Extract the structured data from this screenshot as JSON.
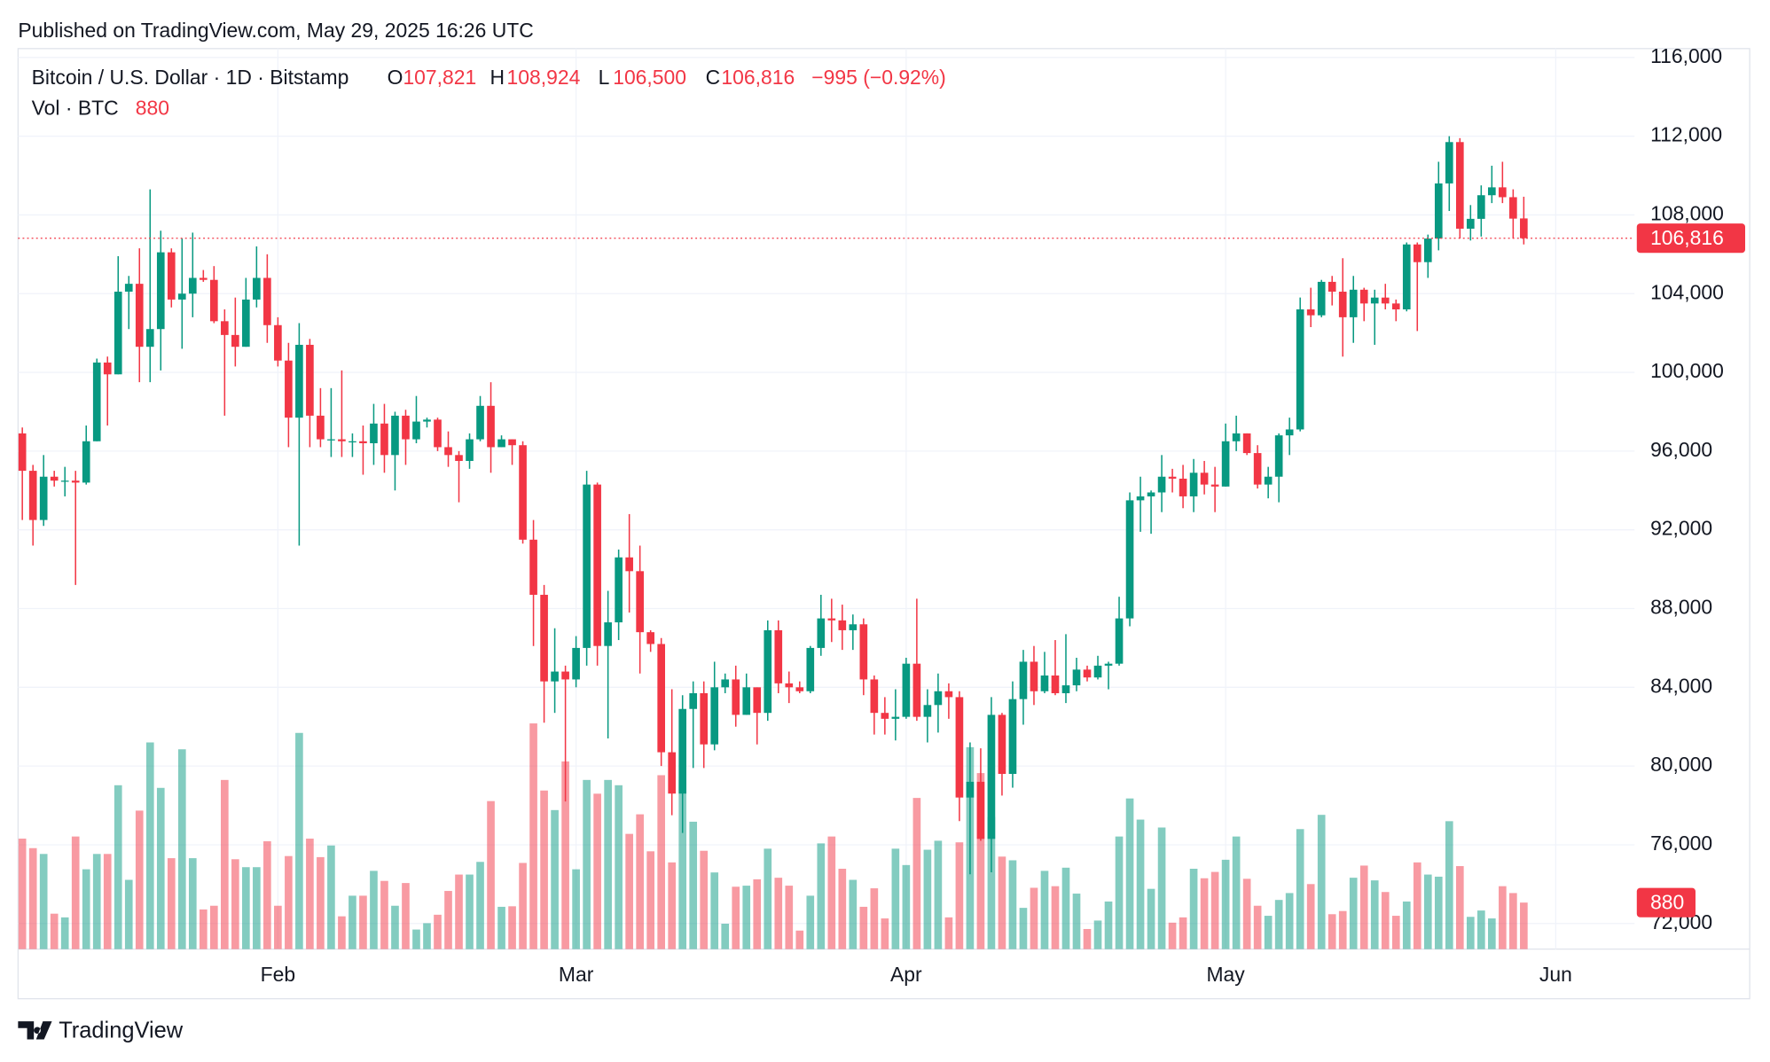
{
  "chart_data": {
    "type": "candlestick",
    "published": "Published on TradingView.com, May 29, 2025 16:26 UTC",
    "title": "Bitcoin / U.S. Dollar · 1D · Bitstamp",
    "brand": "TradingView",
    "legend": {
      "open_label": "O",
      "open": "107,821",
      "high_label": "H",
      "high": "108,924",
      "low_label": "L",
      "low": "106,500",
      "close_label": "C",
      "close": "106,816",
      "change": "−995 (−0.92%)",
      "volume_label": "Vol · BTC",
      "volume": "880"
    },
    "up_color": "#089981",
    "down_color": "#f23645",
    "grid": true,
    "xlim": [
      -0.4,
      151.4
    ],
    "xticks": [
      {
        "value": 24,
        "label": "Feb"
      },
      {
        "value": 52,
        "label": "Mar"
      },
      {
        "value": 83,
        "label": "Apr"
      },
      {
        "value": 113,
        "label": "May"
      },
      {
        "value": 144,
        "label": "Jun"
      }
    ],
    "ylim": [
      70700,
      116450
    ],
    "yticks": [
      {
        "value": 72000,
        "label": "72,000"
      },
      {
        "value": 76000,
        "label": "76,000"
      },
      {
        "value": 80000,
        "label": "80,000"
      },
      {
        "value": 84000,
        "label": "84,000"
      },
      {
        "value": 88000,
        "label": "88,000"
      },
      {
        "value": 92000,
        "label": "92,000"
      },
      {
        "value": 96000,
        "label": "96,000"
      },
      {
        "value": 100000,
        "label": "100,000"
      },
      {
        "value": 104000,
        "label": "104,000"
      },
      {
        "value": 108000,
        "label": "108,000"
      },
      {
        "value": 112000,
        "label": "112,000"
      },
      {
        "value": 116000,
        "label": "116,000"
      }
    ],
    "open": [
      96900,
      95000,
      92500,
      94700,
      94500,
      94500,
      94400,
      96500,
      100500,
      99900,
      104100,
      104500,
      101300,
      102200,
      106100,
      103700,
      104000,
      104800,
      104700,
      102600,
      101900,
      101300,
      103700,
      104800,
      102400,
      100600,
      97700,
      101400,
      97800,
      96600,
      96600,
      96500,
      96500,
      96400,
      97400,
      95800,
      97800,
      96600,
      97500,
      97600,
      96200,
      95800,
      95500,
      96600,
      98300,
      96200,
      96600,
      96300,
      91500,
      88700,
      84300,
      84800,
      84400,
      86000,
      94300,
      86100,
      87300,
      90600,
      89900,
      86800,
      86200,
      80700,
      78600,
      82900,
      83700,
      81100,
      84000,
      84400,
      82600,
      84000,
      82700,
      86900,
      84200,
      84000,
      83800,
      86000,
      87500,
      87400,
      86900,
      87200,
      84400,
      82700,
      82400,
      82500,
      85200,
      82500,
      83100,
      83800,
      83500,
      78400,
      79200,
      76300,
      82600,
      79600,
      83400,
      85300,
      83800,
      84600,
      83700,
      84100,
      84900,
      84500,
      85100,
      85200,
      87500,
      93500,
      93700,
      93900,
      94700,
      94600,
      93700,
      94900,
      94300,
      94200,
      96500,
      96900,
      95900,
      94300,
      94700,
      96800,
      97100,
      103200,
      102900,
      104600,
      104100,
      102800,
      104200,
      103500,
      103800,
      103500,
      103200,
      106500,
      105600,
      106800,
      109600,
      111700,
      107300,
      107800,
      109000,
      109400,
      108900,
      107821
    ],
    "high": [
      97200,
      95300,
      95800,
      95000,
      95200,
      95000,
      97300,
      100700,
      100800,
      105900,
      104900,
      106300,
      109300,
      107200,
      106300,
      106800,
      107100,
      105200,
      105400,
      103200,
      103800,
      104800,
      106400,
      106000,
      102800,
      101500,
      102500,
      101700,
      99200,
      99200,
      100100,
      96900,
      97300,
      98400,
      98400,
      98000,
      98100,
      98800,
      97700,
      97700,
      97000,
      96000,
      96900,
      98800,
      99500,
      96800,
      96600,
      96500,
      92500,
      89200,
      87000,
      85100,
      86600,
      95000,
      94400,
      88900,
      91000,
      92800,
      91200,
      86900,
      86500,
      83900,
      83600,
      84300,
      84300,
      85300,
      84700,
      85100,
      84700,
      84000,
      87400,
      87400,
      84800,
      84300,
      86100,
      88700,
      88500,
      88200,
      87700,
      87500,
      84600,
      83500,
      83900,
      85500,
      88500,
      83900,
      84700,
      84200,
      83800,
      81200,
      80900,
      83500,
      82700,
      84300,
      85900,
      86100,
      85800,
      86400,
      86700,
      85500,
      85100,
      85600,
      85300,
      88600,
      93900,
      94700,
      94000,
      95800,
      95100,
      95300,
      95600,
      95500,
      95200,
      97400,
      97800,
      96900,
      96300,
      95200,
      96900,
      97700,
      103800,
      104300,
      104700,
      104900,
      105800,
      104900,
      104300,
      104200,
      104500,
      103700,
      106600,
      106600,
      107000,
      110700,
      112000,
      111900,
      108500,
      109500,
      110500,
      110700,
      109300,
      108924
    ],
    "low": [
      92500,
      91200,
      92200,
      94200,
      93700,
      89200,
      94300,
      96500,
      97300,
      99900,
      102200,
      99500,
      99500,
      100100,
      103300,
      101200,
      102800,
      104600,
      102500,
      97800,
      100300,
      101300,
      103300,
      101500,
      100300,
      96200,
      91200,
      96200,
      96200,
      95700,
      95700,
      95700,
      94800,
      95300,
      94900,
      94000,
      95300,
      96400,
      97200,
      96000,
      95200,
      93400,
      95100,
      96500,
      94900,
      96200,
      95300,
      91300,
      86100,
      82200,
      82700,
      78200,
      84000,
      85100,
      85100,
      81400,
      86400,
      87800,
      84700,
      85800,
      80000,
      77500,
      76600,
      79900,
      79900,
      80800,
      83700,
      82000,
      82600,
      81100,
      82300,
      83700,
      83200,
      83700,
      83700,
      85600,
      86300,
      85900,
      85900,
      83600,
      81600,
      81600,
      81300,
      82400,
      82300,
      81200,
      81700,
      82400,
      77200,
      74500,
      76200,
      74600,
      78500,
      78900,
      82100,
      83100,
      83700,
      83600,
      83200,
      83800,
      84300,
      84400,
      83900,
      85100,
      87100,
      91900,
      91800,
      92900,
      93900,
      93100,
      92900,
      93800,
      92900,
      94200,
      96000,
      95800,
      94100,
      93600,
      93400,
      95800,
      97000,
      102300,
      102800,
      103400,
      100800,
      101500,
      102600,
      101400,
      103200,
      102600,
      103100,
      102100,
      104800,
      106200,
      108200,
      106800,
      106700,
      106900,
      108600,
      108600,
      106800,
      106500
    ],
    "close": [
      95000,
      92500,
      94700,
      94500,
      94500,
      94400,
      96500,
      100500,
      99900,
      104100,
      104500,
      101300,
      102200,
      106100,
      103700,
      104000,
      104800,
      104700,
      102600,
      101900,
      101300,
      103700,
      104800,
      102400,
      100600,
      97700,
      101400,
      97800,
      96600,
      96600,
      96500,
      96500,
      96400,
      97400,
      95800,
      97800,
      96600,
      97500,
      97600,
      96200,
      95800,
      95500,
      96600,
      98300,
      96200,
      96600,
      96300,
      91500,
      88700,
      84300,
      84800,
      84400,
      86000,
      94300,
      86100,
      87300,
      90600,
      89900,
      86800,
      86200,
      80700,
      78600,
      82900,
      83700,
      81100,
      84000,
      84400,
      82600,
      84000,
      82700,
      86900,
      84200,
      84000,
      83800,
      86000,
      87500,
      87400,
      86900,
      87200,
      84400,
      82700,
      82400,
      82500,
      85200,
      82500,
      83100,
      83800,
      83500,
      78400,
      79200,
      76300,
      82600,
      79600,
      83400,
      85300,
      83800,
      84600,
      83700,
      84100,
      84900,
      84500,
      85100,
      85200,
      87500,
      93500,
      93700,
      93900,
      94700,
      94600,
      93700,
      94900,
      94300,
      94200,
      96500,
      96900,
      95900,
      94300,
      94700,
      96800,
      97100,
      103200,
      102900,
      104600,
      104100,
      102800,
      104200,
      103500,
      103800,
      103500,
      103200,
      106500,
      105600,
      106800,
      109600,
      111700,
      107300,
      107800,
      109000,
      109400,
      108900,
      107811,
      106816
    ],
    "volume": [
      2090,
      1910,
      1800,
      670,
      600,
      2130,
      1510,
      1800,
      1800,
      3100,
      1310,
      2620,
      3910,
      3050,
      1720,
      3780,
      1720,
      750,
      820,
      3200,
      1700,
      1550,
      1550,
      2040,
      820,
      1760,
      4090,
      2090,
      1740,
      1960,
      620,
      1010,
      1010,
      1480,
      1290,
      820,
      1250,
      370,
      490,
      650,
      1100,
      1410,
      1410,
      1650,
      2800,
      800,
      810,
      1630,
      4270,
      3000,
      2630,
      3550,
      1510,
      3200,
      2940,
      3200,
      3100,
      2180,
      2550,
      1850,
      3290,
      1640,
      3200,
      2410,
      1860,
      1450,
      480,
      1180,
      1200,
      1320,
      1900,
      1350,
      1200,
      350,
      1010,
      2000,
      2130,
      1520,
      1310,
      800,
      1150,
      580,
      1900,
      1590,
      2860,
      1880,
      2050,
      600,
      2020,
      3820,
      3330,
      2500,
      1750,
      1680,
      780,
      1160,
      1480,
      1190,
      1540,
      1050,
      380,
      540,
      900,
      2130,
      2850,
      2450,
      1140,
      2300,
      500,
      600,
      1520,
      1340,
      1460,
      1690,
      2130,
      1330,
      820,
      630,
      930,
      1060,
      2270,
      1230,
      2540,
      660,
      720,
      1350,
      1580,
      1300,
      1080,
      630,
      900,
      1640,
      1410,
      1370,
      2420,
      1570,
      610,
      730,
      580,
      1190,
      1060,
      880
    ]
  }
}
